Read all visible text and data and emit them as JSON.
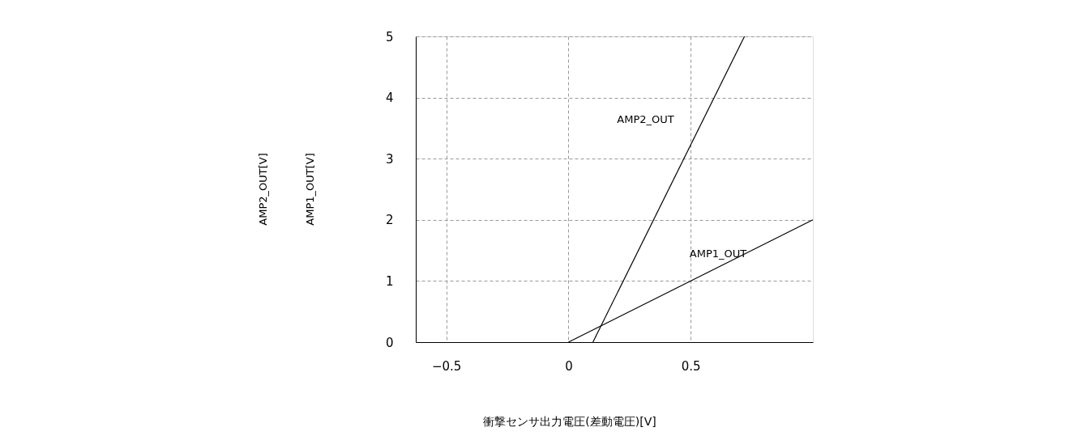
{
  "chart_data": {
    "type": "line",
    "xlabel": "衝撃センサ出力電圧(差動電圧)[V]",
    "annotations": [
      "AMP2_OUT[V]",
      "AMP1_OUT[V]"
    ],
    "series": [
      {
        "name": "AMP1_OUT",
        "color": "#000000",
        "x": [
          0,
          1.0
        ],
        "values": [
          0,
          2
        ]
      },
      {
        "name": "AMP2_OUT",
        "color": "#000000",
        "x": [
          0.1,
          0.72
        ],
        "values": [
          0,
          5
        ]
      }
    ],
    "xlim": [
      -0.625,
      1.0
    ],
    "ylim": [
      0,
      5
    ],
    "xticks": [
      -0.5,
      0,
      0.5
    ],
    "yticks": [
      0,
      1,
      2,
      3,
      4,
      5
    ],
    "grid": true,
    "legend": false,
    "marker": "none",
    "line_style": "solid"
  }
}
